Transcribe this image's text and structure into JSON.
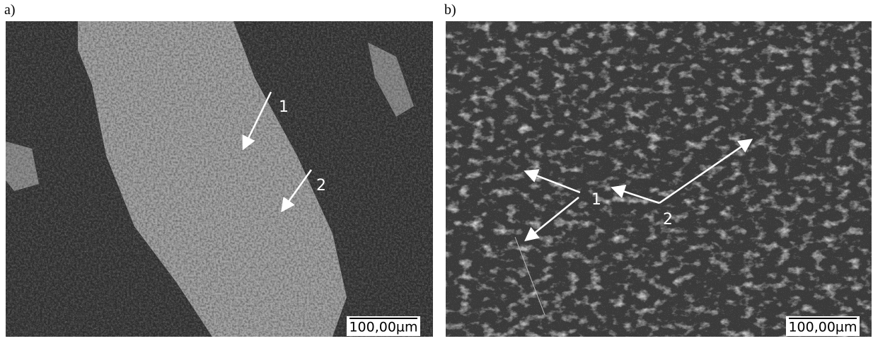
{
  "panels": [
    {
      "label": "a)",
      "callouts": [
        "1",
        "2"
      ],
      "scale_bar": "100,00µm"
    },
    {
      "label": "b)",
      "callouts": [
        "1",
        "2"
      ],
      "scale_bar": "100,00µm"
    }
  ]
}
